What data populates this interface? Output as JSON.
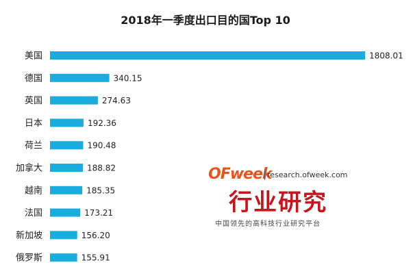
{
  "title": "2018年一季度出口目的国Top 10",
  "colors": {
    "bar": "#1aabdf",
    "watermark_accent": "#e8541c",
    "watermark_text": "#c4161c"
  },
  "watermark": {
    "logo_of": "OF",
    "logo_week": "week",
    "site": "research.ofweek.com",
    "headline": "行业研究",
    "tagline": "中国领先的高科技行业研究平台"
  },
  "chart_data": {
    "type": "bar",
    "orientation": "horizontal",
    "title": "2018年一季度出口目的国Top 10",
    "categories": [
      "美国",
      "德国",
      "英国",
      "日本",
      "荷兰",
      "加拿大",
      "越南",
      "法国",
      "新加坡",
      "俄罗斯"
    ],
    "values": [
      1808.01,
      340.15,
      274.63,
      192.36,
      190.48,
      188.82,
      185.35,
      173.21,
      156.2,
      155.91
    ],
    "value_labels": [
      "1808.01",
      "340.15",
      "274.63",
      "192.36",
      "190.48",
      "188.82",
      "185.35",
      "173.21",
      "156.20",
      "155.91"
    ],
    "xlabel": "",
    "ylabel": "",
    "grid": false,
    "legend": "none"
  }
}
